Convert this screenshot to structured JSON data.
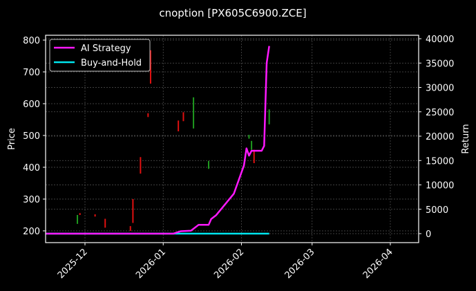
{
  "chart_data": {
    "type": "line",
    "title": "cnoption [PX605C6900.ZCE]",
    "xlabel": "",
    "ylabel": "Price",
    "ylabel_right": "Return",
    "x_ticks": [
      "2025-12",
      "2026-01",
      "2026-02",
      "2026-03",
      "2026-04"
    ],
    "y_ticks_left": [
      200,
      300,
      400,
      500,
      600,
      700,
      800
    ],
    "y_ticks_right": [
      0,
      5000,
      10000,
      15000,
      20000,
      25000,
      30000,
      35000,
      40000
    ],
    "ylim_left": [
      160,
      812
    ],
    "ylim_right": [
      -2000,
      40800
    ],
    "grid": true,
    "legend_position": "upper left",
    "legend": [
      "AI Strategy",
      "Buy-and-Hold"
    ],
    "series": [
      {
        "name": "AI Strategy",
        "axis": "right",
        "color": "#ff19ff",
        "x": [
          "2025-11-15",
          "2025-12-15",
          "2026-01-01",
          "2026-01-05",
          "2026-01-08",
          "2026-01-12",
          "2026-01-15",
          "2026-01-19",
          "2026-01-20",
          "2026-01-22",
          "2026-01-29",
          "2026-02-02",
          "2026-02-03",
          "2026-02-04",
          "2026-02-05",
          "2026-02-06",
          "2026-02-09",
          "2026-02-10",
          "2026-02-11",
          "2026-02-12"
        ],
        "values": [
          0,
          0,
          0,
          0,
          500,
          600,
          1800,
          1800,
          3000,
          3800,
          8200,
          14000,
          17500,
          16000,
          17000,
          17000,
          17000,
          18000,
          35000,
          38500
        ]
      },
      {
        "name": "Buy-and-Hold",
        "axis": "right",
        "color": "#00e5ee",
        "x": [
          "2025-11-15",
          "2026-02-12"
        ],
        "values": [
          0,
          0
        ]
      },
      {
        "name": "Price candles",
        "axis": "left",
        "type": "candlestick",
        "up_color": "#1f9a1f",
        "down_color": "#e01010",
        "candles": [
          {
            "x": "2025-11-28",
            "high": 250,
            "low": 222,
            "dir": "up"
          },
          {
            "x": "2025-11-29",
            "high": 256,
            "low": 250,
            "dir": "down"
          },
          {
            "x": "2025-12-05",
            "high": 252,
            "low": 245,
            "dir": "down"
          },
          {
            "x": "2025-12-09",
            "high": 238,
            "low": 210,
            "dir": "down"
          },
          {
            "x": "2025-12-19",
            "high": 215,
            "low": 200,
            "dir": "down"
          },
          {
            "x": "2025-12-20",
            "high": 300,
            "low": 225,
            "dir": "down"
          },
          {
            "x": "2025-12-23",
            "high": 432,
            "low": 380,
            "dir": "down"
          },
          {
            "x": "2025-12-27",
            "high": 768,
            "low": 663,
            "dir": "down"
          },
          {
            "x": "2025-12-26",
            "high": 570,
            "low": 558,
            "dir": "down"
          },
          {
            "x": "2026-01-07",
            "high": 547,
            "low": 513,
            "dir": "down"
          },
          {
            "x": "2026-01-09",
            "high": 573,
            "low": 545,
            "dir": "down"
          },
          {
            "x": "2026-01-13",
            "high": 620,
            "low": 522,
            "dir": "up"
          },
          {
            "x": "2026-01-19",
            "high": 420,
            "low": 395,
            "dir": "up"
          },
          {
            "x": "2026-02-04",
            "high": 502,
            "low": 490,
            "dir": "up"
          },
          {
            "x": "2026-02-05",
            "high": 483,
            "low": 455,
            "dir": "up"
          },
          {
            "x": "2026-02-06",
            "high": 455,
            "low": 413,
            "dir": "down"
          },
          {
            "x": "2026-02-12",
            "high": 582,
            "low": 535,
            "dir": "up"
          }
        ]
      }
    ]
  }
}
